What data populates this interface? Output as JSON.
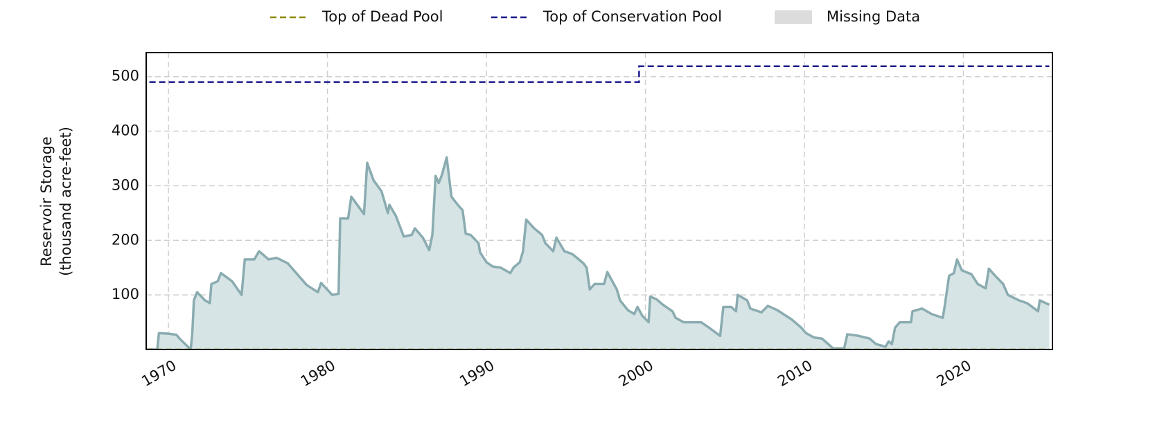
{
  "chart_data": {
    "type": "area",
    "ylabel": [
      "Reservoir Storage",
      "(thousand acre-feet)"
    ],
    "xlim": [
      1968.6,
      2025.6
    ],
    "ylim": [
      0,
      544
    ],
    "xticks": [
      1970,
      1980,
      1990,
      2000,
      2010,
      2020
    ],
    "yticks": [
      100,
      200,
      300,
      400,
      500
    ],
    "grid": true,
    "legend": "top",
    "storage": {
      "color": "#8aacb0",
      "fill": "#d6e4e6",
      "x": [
        1968.6,
        1969.3,
        1969.4,
        1970.0,
        1970.5,
        1970.7,
        1971.4,
        1971.5,
        1971.6,
        1971.8,
        1972.3,
        1972.6,
        1972.7,
        1973.1,
        1973.3,
        1974.0,
        1974.6,
        1974.8,
        1975.4,
        1975.7,
        1976.3,
        1976.8,
        1977.5,
        1978.1,
        1978.7,
        1979.4,
        1979.6,
        1980.3,
        1980.7,
        1980.8,
        1981.3,
        1981.5,
        1982.0,
        1982.3,
        1982.5,
        1982.9,
        1983.4,
        1983.8,
        1983.9,
        1984.3,
        1984.8,
        1985.3,
        1985.5,
        1986.0,
        1986.4,
        1986.6,
        1986.8,
        1987.0,
        1987.2,
        1987.5,
        1987.8,
        1988.2,
        1988.5,
        1988.7,
        1989.0,
        1989.5,
        1989.6,
        1990.0,
        1990.4,
        1990.9,
        1991.5,
        1991.7,
        1992.1,
        1992.3,
        1992.5,
        1993.0,
        1993.5,
        1993.7,
        1994.2,
        1994.4,
        1994.9,
        1995.4,
        1996.1,
        1996.3,
        1996.5,
        1996.8,
        1997.4,
        1997.6,
        1998.2,
        1998.4,
        1998.9,
        1999.3,
        1999.5,
        1999.8,
        2000.2,
        2000.3,
        2000.7,
        2001.1,
        2001.7,
        2001.9,
        2002.4,
        2003.5,
        2004.0,
        2004.7,
        2004.9,
        2005.4,
        2005.7,
        2005.8,
        2006.4,
        2006.6,
        2007.3,
        2007.7,
        2008.3,
        2009.2,
        2009.8,
        2010.1,
        2010.6,
        2011.1,
        2011.5,
        2011.8,
        2012.5,
        2012.7,
        2013.4,
        2014.1,
        2014.5,
        2015.1,
        2015.3,
        2015.5,
        2015.7,
        2016.0,
        2016.7,
        2016.8,
        2017.4,
        2018.0,
        2018.7,
        2018.8,
        2019.1,
        2019.4,
        2019.6,
        2019.9,
        2020.5,
        2020.9,
        2021.4,
        2021.6,
        2022.0,
        2022.5,
        2022.8,
        2023.5,
        2024.0,
        2024.7,
        2024.8,
        2025.4
      ],
      "values": [
        0,
        0,
        30,
        29,
        27,
        20,
        0,
        30,
        90,
        105,
        90,
        85,
        120,
        125,
        140,
        125,
        100,
        165,
        165,
        180,
        165,
        168,
        158,
        138,
        118,
        105,
        122,
        100,
        102,
        240,
        240,
        280,
        260,
        248,
        342,
        310,
        290,
        250,
        265,
        245,
        207,
        210,
        222,
        205,
        182,
        210,
        318,
        305,
        320,
        352,
        280,
        265,
        255,
        212,
        210,
        195,
        178,
        160,
        152,
        150,
        140,
        150,
        160,
        180,
        238,
        222,
        210,
        195,
        180,
        205,
        180,
        175,
        158,
        150,
        110,
        120,
        120,
        142,
        110,
        90,
        72,
        65,
        78,
        62,
        50,
        97,
        92,
        82,
        70,
        58,
        50,
        50,
        40,
        25,
        78,
        78,
        70,
        100,
        90,
        75,
        68,
        80,
        72,
        55,
        40,
        30,
        22,
        20,
        10,
        2,
        2,
        28,
        25,
        20,
        10,
        5,
        15,
        10,
        40,
        50,
        50,
        70,
        75,
        65,
        58,
        75,
        135,
        140,
        165,
        145,
        138,
        120,
        112,
        148,
        135,
        120,
        100,
        90,
        85,
        70,
        90,
        82
      ]
    },
    "series": [
      {
        "name": "Top of Dead Pool",
        "color": "#8a8a00",
        "x": [
          1968.6,
          2025.4
        ],
        "values": [
          0,
          0
        ]
      },
      {
        "name": "Top of Conservation Pool",
        "color": "#1a1a8c",
        "x": [
          1968.8,
          1999.6,
          1999.6,
          2025.4
        ],
        "values": [
          490,
          490,
          519,
          519
        ]
      }
    ],
    "missing_data": {
      "name": "Missing Data",
      "color": "#dcdcdc"
    }
  }
}
